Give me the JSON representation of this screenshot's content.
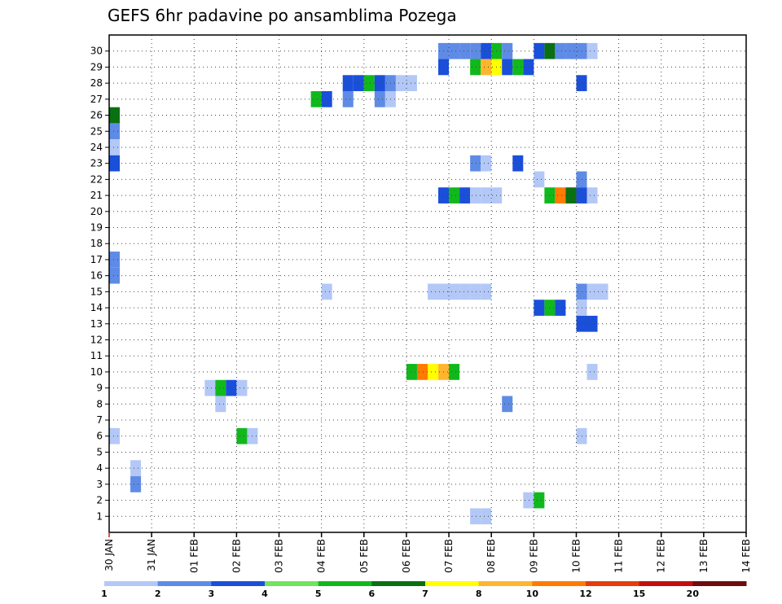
{
  "chart_data": {
    "type": "heatmap",
    "title": "GEFS 6hr padavine po ansamblima Pozega",
    "x_dates": [
      "30 JAN",
      "31 JAN",
      "01 FEB",
      "02 FEB",
      "03 FEB",
      "04 FEB",
      "05 FEB",
      "06 FEB",
      "07 FEB",
      "08 FEB",
      "09 FEB",
      "10 FEB",
      "11 FEB",
      "12 FEB",
      "13 FEB",
      "14 FEB"
    ],
    "steps_per_day": 4,
    "y_members": [
      1,
      2,
      3,
      4,
      5,
      6,
      7,
      8,
      9,
      10,
      11,
      12,
      13,
      14,
      15,
      16,
      17,
      18,
      19,
      20,
      21,
      22,
      23,
      24,
      25,
      26,
      27,
      28,
      29,
      30
    ],
    "grid": true,
    "colorbar": {
      "labels": [
        "1",
        "2",
        "3",
        "4",
        "5",
        "6",
        "7",
        "8",
        "10",
        "12",
        "15",
        "20"
      ],
      "colors": [
        "#b3c8f7",
        "#5e8be6",
        "#1a4fd9",
        "#70e45c",
        "#11b81c",
        "#0a7012",
        "#ffff00",
        "#ffb52e",
        "#ff7b00",
        "#e63c0a",
        "#c40e0e",
        "#6e0d0d"
      ]
    },
    "cells": [
      [
        1,
        30,
        2
      ],
      [
        2,
        30,
        2
      ],
      [
        3,
        30,
        2
      ],
      [
        4,
        30,
        2
      ],
      [
        5,
        30,
        3
      ],
      [
        6,
        30,
        5
      ],
      [
        7,
        30,
        2
      ],
      [
        10,
        30,
        3
      ],
      [
        11,
        30,
        6
      ],
      [
        12,
        30,
        2
      ],
      [
        13,
        30,
        2
      ],
      [
        14,
        30,
        2
      ],
      [
        15,
        30,
        1
      ],
      [
        1,
        29,
        3
      ],
      [
        4,
        29,
        5
      ],
      [
        5,
        29,
        8
      ],
      [
        6,
        29,
        7
      ],
      [
        7,
        29,
        3
      ],
      [
        8,
        29,
        5
      ],
      [
        9,
        29,
        3
      ],
      [
        -8,
        28,
        3
      ],
      [
        -7,
        28,
        3
      ],
      [
        -6,
        28,
        5
      ],
      [
        -5,
        28,
        3
      ],
      [
        -4,
        28,
        2
      ],
      [
        -3,
        28,
        1
      ],
      [
        -2,
        28,
        1
      ],
      [
        14,
        28,
        3
      ],
      [
        -11,
        27,
        5
      ],
      [
        -10,
        27,
        3
      ],
      [
        -8,
        27,
        2
      ],
      [
        -5,
        27,
        2
      ],
      [
        -4,
        27,
        1
      ],
      [
        -30,
        26,
        6
      ],
      [
        -30,
        25,
        2
      ],
      [
        -30,
        24,
        1
      ],
      [
        -30,
        23,
        3
      ],
      [
        4,
        23,
        2
      ],
      [
        5,
        23,
        1
      ],
      [
        8,
        23,
        3
      ],
      [
        10,
        22,
        1
      ],
      [
        14,
        22,
        2
      ],
      [
        1,
        21,
        3
      ],
      [
        2,
        21,
        5
      ],
      [
        3,
        21,
        3
      ],
      [
        4,
        21,
        1
      ],
      [
        5,
        21,
        1
      ],
      [
        6,
        21,
        1
      ],
      [
        11,
        21,
        5
      ],
      [
        12,
        21,
        9
      ],
      [
        13,
        21,
        6
      ],
      [
        14,
        21,
        3
      ],
      [
        15,
        21,
        1
      ],
      [
        -30,
        17,
        2
      ],
      [
        -30,
        16,
        2
      ],
      [
        -10,
        15,
        1
      ],
      [
        0,
        15,
        1
      ],
      [
        1,
        15,
        1
      ],
      [
        2,
        15,
        1
      ],
      [
        3,
        15,
        1
      ],
      [
        4,
        15,
        1
      ],
      [
        5,
        15,
        1
      ],
      [
        14,
        15,
        2
      ],
      [
        15,
        15,
        1
      ],
      [
        16,
        15,
        1
      ],
      [
        10,
        14,
        3
      ],
      [
        11,
        14,
        5
      ],
      [
        12,
        14,
        3
      ],
      [
        14,
        14,
        1
      ],
      [
        14,
        13,
        3
      ],
      [
        15,
        13,
        3
      ],
      [
        2,
        10,
        5
      ],
      [
        1,
        10,
        8
      ],
      [
        0,
        10,
        7
      ],
      [
        -1,
        10,
        9
      ],
      [
        -2,
        10,
        5
      ],
      [
        15,
        10,
        1
      ],
      [
        -21,
        9,
        1
      ],
      [
        -20,
        9,
        5
      ],
      [
        -19,
        9,
        3
      ],
      [
        -18,
        9,
        1
      ],
      [
        7,
        8,
        2
      ],
      [
        -20,
        8,
        1
      ],
      [
        -30,
        6,
        1
      ],
      [
        -18,
        6,
        5
      ],
      [
        -17,
        6,
        1
      ],
      [
        14,
        6,
        1
      ],
      [
        -28,
        4,
        1
      ],
      [
        -28,
        3,
        2
      ],
      [
        9,
        2,
        1
      ],
      [
        10,
        2,
        5
      ],
      [
        4,
        1,
        1
      ],
      [
        5,
        1,
        1
      ]
    ]
  }
}
